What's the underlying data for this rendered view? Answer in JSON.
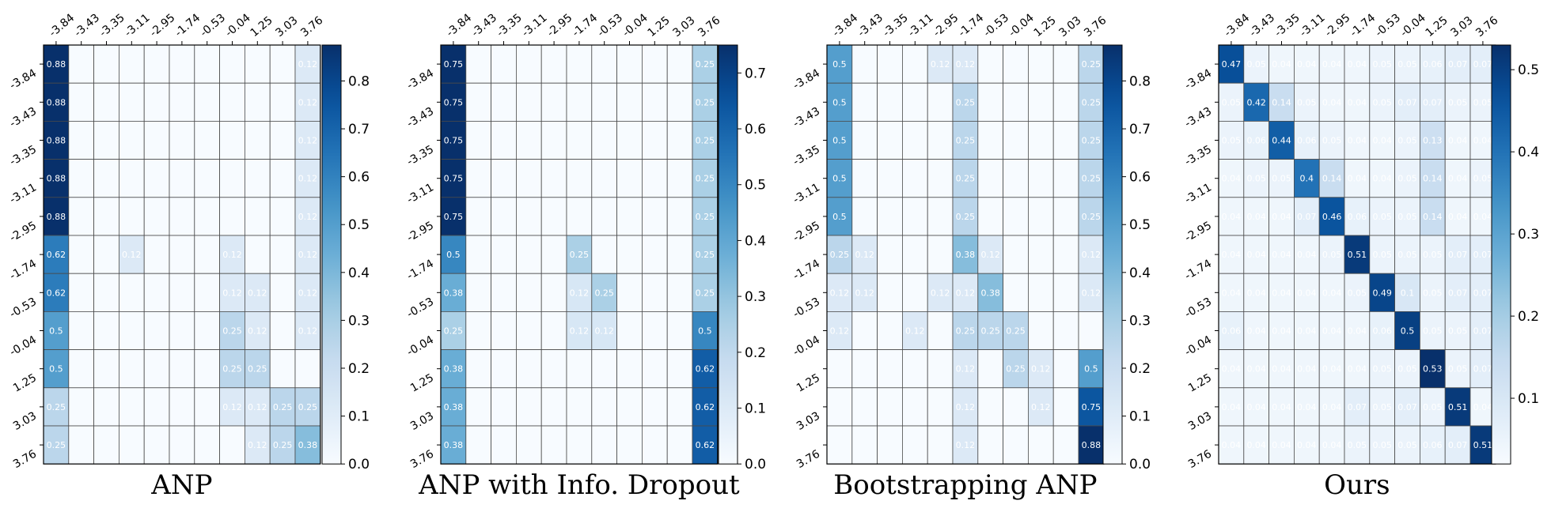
{
  "chart_data": [
    {
      "type": "heatmap",
      "title": "ANP",
      "x": [
        "-3.84",
        "-3.43",
        "-3.35",
        "-3.11",
        "-2.95",
        "-1.74",
        "-0.53",
        "-0.04",
        "1.25",
        "3.03",
        "3.76"
      ],
      "y": [
        "-3.84",
        "-3.43",
        "-3.35",
        "-3.11",
        "-2.95",
        "-1.74",
        "-0.53",
        "-0.04",
        "1.25",
        "3.03",
        "3.76"
      ],
      "values": [
        [
          0.88,
          0,
          0,
          0,
          0,
          0,
          0,
          0,
          0,
          0,
          0.12
        ],
        [
          0.88,
          0,
          0,
          0,
          0,
          0,
          0,
          0,
          0,
          0,
          0.12
        ],
        [
          0.88,
          0,
          0,
          0,
          0,
          0,
          0,
          0,
          0,
          0,
          0.12
        ],
        [
          0.88,
          0,
          0,
          0,
          0,
          0,
          0,
          0,
          0,
          0,
          0.12
        ],
        [
          0.88,
          0,
          0,
          0,
          0,
          0,
          0,
          0,
          0,
          0,
          0.12
        ],
        [
          0.62,
          0,
          0,
          0.12,
          0,
          0,
          0,
          0.12,
          0,
          0,
          0.12
        ],
        [
          0.62,
          0,
          0,
          0,
          0,
          0,
          0,
          0.12,
          0.12,
          0,
          0.12
        ],
        [
          0.5,
          0,
          0,
          0,
          0,
          0,
          0,
          0.25,
          0.12,
          0,
          0.12
        ],
        [
          0.5,
          0,
          0,
          0,
          0,
          0,
          0,
          0.25,
          0.25,
          0,
          0
        ],
        [
          0.25,
          0,
          0,
          0,
          0,
          0,
          0,
          0.12,
          0.12,
          0.25,
          0.25
        ],
        [
          0.25,
          0,
          0,
          0,
          0,
          0,
          0,
          0,
          0.12,
          0.25,
          0.38
        ]
      ],
      "colorbar": {
        "vmin": 0.0,
        "vmax": 0.875,
        "ticks": [
          0.0,
          0.1,
          0.2,
          0.3,
          0.4,
          0.5,
          0.6,
          0.7,
          0.8
        ],
        "tick_labels": [
          "0.0",
          "0.1",
          "0.2",
          "0.3",
          "0.4",
          "0.5",
          "0.6",
          "0.7",
          "0.8"
        ]
      }
    },
    {
      "type": "heatmap",
      "title": "ANP with Info. Dropout",
      "x": [
        "-3.84",
        "-3.43",
        "-3.35",
        "-3.11",
        "-2.95",
        "-1.74",
        "-0.53",
        "-0.04",
        "1.25",
        "3.03",
        "3.76"
      ],
      "y": [
        "-3.84",
        "-3.43",
        "-3.35",
        "-3.11",
        "-2.95",
        "-1.74",
        "-0.53",
        "-0.04",
        "1.25",
        "3.03",
        "3.76"
      ],
      "values": [
        [
          0.75,
          0,
          0,
          0,
          0,
          0,
          0,
          0,
          0,
          0,
          0.25
        ],
        [
          0.75,
          0,
          0,
          0,
          0,
          0,
          0,
          0,
          0,
          0,
          0.25
        ],
        [
          0.75,
          0,
          0,
          0,
          0,
          0,
          0,
          0,
          0,
          0,
          0.25
        ],
        [
          0.75,
          0,
          0,
          0,
          0,
          0,
          0,
          0,
          0,
          0,
          0.25
        ],
        [
          0.75,
          0,
          0,
          0,
          0,
          0,
          0,
          0,
          0,
          0,
          0.25
        ],
        [
          0.5,
          0,
          0,
          0,
          0,
          0.25,
          0,
          0,
          0,
          0,
          0.25
        ],
        [
          0.38,
          0,
          0,
          0,
          0,
          0.12,
          0.25,
          0,
          0,
          0,
          0.25
        ],
        [
          0.25,
          0,
          0,
          0,
          0,
          0.12,
          0.12,
          0,
          0,
          0,
          0.5
        ],
        [
          0.38,
          0,
          0,
          0,
          0,
          0,
          0,
          0,
          0,
          0,
          0.62
        ],
        [
          0.38,
          0,
          0,
          0,
          0,
          0,
          0,
          0,
          0,
          0,
          0.62
        ],
        [
          0.38,
          0,
          0,
          0,
          0,
          0,
          0,
          0,
          0,
          0,
          0.62
        ]
      ],
      "colorbar": {
        "vmin": 0.0,
        "vmax": 0.75,
        "ticks": [
          0.0,
          0.1,
          0.2,
          0.3,
          0.4,
          0.5,
          0.6,
          0.7
        ],
        "tick_labels": [
          "0.0",
          "0.1",
          "0.2",
          "0.3",
          "0.4",
          "0.5",
          "0.6",
          "0.7"
        ]
      }
    },
    {
      "type": "heatmap",
      "title": "Bootstrapping ANP",
      "x": [
        "-3.84",
        "-3.43",
        "-3.35",
        "-3.11",
        "-2.95",
        "-1.74",
        "-0.53",
        "-0.04",
        "1.25",
        "3.03",
        "3.76"
      ],
      "y": [
        "-3.84",
        "-3.43",
        "-3.35",
        "-3.11",
        "-2.95",
        "-1.74",
        "-0.53",
        "-0.04",
        "1.25",
        "3.03",
        "3.76"
      ],
      "values": [
        [
          0.5,
          0,
          0,
          0,
          0.12,
          0.12,
          0,
          0,
          0,
          0,
          0.25
        ],
        [
          0.5,
          0,
          0,
          0,
          0,
          0.25,
          0,
          0,
          0,
          0,
          0.25
        ],
        [
          0.5,
          0,
          0,
          0,
          0,
          0.25,
          0,
          0,
          0,
          0,
          0.25
        ],
        [
          0.5,
          0,
          0,
          0,
          0,
          0.25,
          0,
          0,
          0,
          0,
          0.25
        ],
        [
          0.5,
          0,
          0,
          0,
          0,
          0.25,
          0,
          0,
          0,
          0,
          0.25
        ],
        [
          0.25,
          0.12,
          0,
          0,
          0,
          0.38,
          0.12,
          0,
          0,
          0,
          0.12
        ],
        [
          0.12,
          0.12,
          0,
          0,
          0.12,
          0.12,
          0.38,
          0,
          0,
          0,
          0.12
        ],
        [
          0.12,
          0,
          0,
          0.12,
          0,
          0.25,
          0.25,
          0.25,
          0,
          0,
          0
        ],
        [
          0,
          0,
          0,
          0,
          0,
          0.12,
          0,
          0.25,
          0.12,
          0,
          0.5
        ],
        [
          0,
          0,
          0,
          0,
          0,
          0.12,
          0,
          0,
          0.12,
          0,
          0.75
        ],
        [
          0,
          0,
          0,
          0,
          0,
          0.12,
          0,
          0,
          0,
          0,
          0.88
        ]
      ],
      "colorbar": {
        "vmin": 0.0,
        "vmax": 0.875,
        "ticks": [
          0.0,
          0.1,
          0.2,
          0.3,
          0.4,
          0.5,
          0.6,
          0.7,
          0.8
        ],
        "tick_labels": [
          "0.0",
          "0.1",
          "0.2",
          "0.3",
          "0.4",
          "0.5",
          "0.6",
          "0.7",
          "0.8"
        ]
      }
    },
    {
      "type": "heatmap",
      "title": "Ours",
      "x": [
        "-3.84",
        "-3.43",
        "-3.35",
        "-3.11",
        "-2.95",
        "-1.74",
        "-0.53",
        "-0.04",
        "1.25",
        "3.03",
        "3.76"
      ],
      "y": [
        "-3.84",
        "-3.43",
        "-3.35",
        "-3.11",
        "-2.95",
        "-1.74",
        "-0.53",
        "-0.04",
        "1.25",
        "3.03",
        "3.76"
      ],
      "values": [
        [
          0.47,
          0.05,
          0.04,
          0.04,
          0.04,
          0.04,
          0.05,
          0.05,
          0.06,
          0.07,
          0.07
        ],
        [
          0.05,
          0.42,
          0.14,
          0.05,
          0.04,
          0.04,
          0.05,
          0.07,
          0.07,
          0.05,
          0.05
        ],
        [
          0.05,
          0.06,
          0.44,
          0.06,
          0.05,
          0.04,
          0.04,
          0.05,
          0.13,
          0.04,
          0.04
        ],
        [
          0.04,
          0.05,
          0.05,
          0.4,
          0.14,
          0.04,
          0.04,
          0.05,
          0.14,
          0.04,
          0.05
        ],
        [
          0.04,
          0.04,
          0.04,
          0.07,
          0.46,
          0.06,
          0.05,
          0.05,
          0.14,
          0.04,
          0.04
        ],
        [
          0.04,
          0.04,
          0.04,
          0.04,
          0.05,
          0.51,
          0.05,
          0.05,
          0.05,
          0.07,
          0.07
        ],
        [
          0.04,
          0.04,
          0.04,
          0.04,
          0.04,
          0.05,
          0.49,
          0.1,
          0.05,
          0.07,
          0.07
        ],
        [
          0.06,
          0.04,
          0.04,
          0.04,
          0.04,
          0.04,
          0.06,
          0.5,
          0.05,
          0.05,
          0.07
        ],
        [
          0.04,
          0.04,
          0.04,
          0.04,
          0.04,
          0.04,
          0.05,
          0.05,
          0.53,
          0.05,
          0.07
        ],
        [
          0.04,
          0.04,
          0.04,
          0.04,
          0.04,
          0.07,
          0.05,
          0.07,
          0.05,
          0.51,
          0.04
        ],
        [
          0.04,
          0.04,
          0.04,
          0.04,
          0.04,
          0.05,
          0.05,
          0.05,
          0.06,
          0.07,
          0.51
        ]
      ],
      "colorbar": {
        "vmin": 0.02,
        "vmax": 0.53,
        "ticks": [
          0.1,
          0.2,
          0.3,
          0.4,
          0.5
        ],
        "tick_labels": [
          "0.1",
          "0.2",
          "0.3",
          "0.4",
          "0.5"
        ]
      }
    }
  ]
}
